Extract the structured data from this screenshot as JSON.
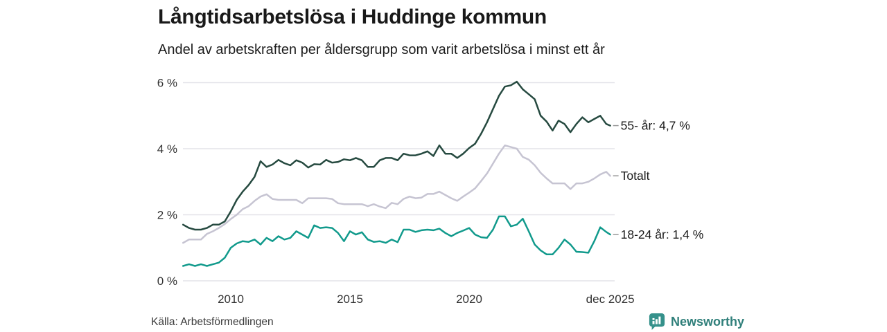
{
  "title": "Långtidsarbetslösa i Huddinge kommun",
  "subtitle": "Andel av arbetskraften per åldersgrupp som varit arbetslösa i minst ett år",
  "source": "Källa: Arbetsförmedlingen",
  "branding": {
    "name": "Newsworthy",
    "text_color": "#2f7f7a",
    "icon_color": "#35918b",
    "icon": "bar-chart-speech-bubble"
  },
  "colors": {
    "gridline": "#e4e3e9",
    "axis_text": "#333333",
    "label_text": "#191919",
    "connector": "#999999",
    "background": "#ffffff"
  },
  "chart_data": {
    "type": "line",
    "title": "Långtidsarbetslösa i Huddinge kommun",
    "subtitle": "Andel av arbetskraften per åldersgrupp som varit arbetslösa i minst ett år",
    "unit": "%",
    "grid": "horizontal",
    "legend_position": "right-end-labels",
    "ylim": [
      0,
      6.3
    ],
    "xlim": [
      2008.0,
      2025.92
    ],
    "yticks": [
      {
        "v": 0,
        "label": "0 %"
      },
      {
        "v": 2,
        "label": "2 %"
      },
      {
        "v": 4,
        "label": "4 %"
      },
      {
        "v": 6,
        "label": "6 %"
      }
    ],
    "xticks": [
      {
        "t": 2010,
        "label": "2010"
      },
      {
        "t": 2015,
        "label": "2015"
      },
      {
        "t": 2020,
        "label": "2020"
      },
      {
        "t": 2025.92,
        "label": "dec 2025"
      }
    ],
    "x": [
      2008.0,
      2008.25,
      2008.5,
      2008.75,
      2009.0,
      2009.25,
      2009.5,
      2009.75,
      2010.0,
      2010.25,
      2010.5,
      2010.75,
      2011.0,
      2011.25,
      2011.5,
      2011.75,
      2012.0,
      2012.25,
      2012.5,
      2012.75,
      2013.0,
      2013.25,
      2013.5,
      2013.75,
      2014.0,
      2014.25,
      2014.5,
      2014.75,
      2015.0,
      2015.25,
      2015.5,
      2015.75,
      2016.0,
      2016.25,
      2016.5,
      2016.75,
      2017.0,
      2017.25,
      2017.5,
      2017.75,
      2018.0,
      2018.25,
      2018.5,
      2018.75,
      2019.0,
      2019.25,
      2019.5,
      2019.75,
      2020.0,
      2020.25,
      2020.5,
      2020.75,
      2021.0,
      2021.25,
      2021.5,
      2021.75,
      2022.0,
      2022.25,
      2022.5,
      2022.75,
      2023.0,
      2023.25,
      2023.5,
      2023.75,
      2024.0,
      2024.25,
      2024.5,
      2024.75,
      2025.0,
      2025.25,
      2025.5,
      2025.75,
      2025.92
    ],
    "series": [
      {
        "name": "55- år",
        "end_label": "55- år: 4,7 %",
        "end_value": "4,7 %",
        "color": "#264a40",
        "values": [
          1.7,
          1.6,
          1.55,
          1.55,
          1.6,
          1.7,
          1.7,
          1.8,
          2.1,
          2.45,
          2.7,
          2.9,
          3.15,
          3.62,
          3.45,
          3.52,
          3.66,
          3.56,
          3.5,
          3.65,
          3.58,
          3.43,
          3.53,
          3.52,
          3.66,
          3.58,
          3.6,
          3.68,
          3.65,
          3.72,
          3.65,
          3.45,
          3.45,
          3.65,
          3.72,
          3.72,
          3.65,
          3.85,
          3.8,
          3.8,
          3.85,
          3.92,
          3.78,
          4.1,
          3.85,
          3.85,
          3.72,
          3.85,
          4.02,
          4.15,
          4.45,
          4.8,
          5.2,
          5.6,
          5.88,
          5.92,
          6.03,
          5.8,
          5.65,
          5.5,
          5.0,
          4.82,
          4.55,
          4.85,
          4.75,
          4.5,
          4.75,
          4.95,
          4.8,
          4.9,
          5.0,
          4.75,
          4.7
        ]
      },
      {
        "name": "Totalt",
        "end_label": "Totalt",
        "end_value": "",
        "color": "#c6c4d2",
        "values": [
          1.15,
          1.25,
          1.25,
          1.25,
          1.42,
          1.5,
          1.6,
          1.72,
          1.87,
          2.0,
          2.17,
          2.26,
          2.42,
          2.55,
          2.62,
          2.48,
          2.45,
          2.45,
          2.45,
          2.45,
          2.35,
          2.5,
          2.5,
          2.5,
          2.5,
          2.48,
          2.35,
          2.32,
          2.32,
          2.32,
          2.32,
          2.26,
          2.32,
          2.25,
          2.2,
          2.36,
          2.32,
          2.48,
          2.55,
          2.5,
          2.52,
          2.63,
          2.63,
          2.7,
          2.6,
          2.5,
          2.42,
          2.55,
          2.67,
          2.8,
          3.02,
          3.25,
          3.55,
          3.85,
          4.1,
          4.05,
          4.0,
          3.75,
          3.67,
          3.5,
          3.27,
          3.1,
          2.95,
          2.95,
          2.95,
          2.78,
          2.95,
          2.95,
          3.0,
          3.1,
          3.22,
          3.3,
          3.18
        ]
      },
      {
        "name": "18-24 år",
        "end_label": "18-24 år: 1,4 %",
        "end_value": "1,4 %",
        "color": "#119a8c",
        "values": [
          0.45,
          0.5,
          0.45,
          0.5,
          0.45,
          0.5,
          0.55,
          0.7,
          1.0,
          1.13,
          1.2,
          1.18,
          1.25,
          1.1,
          1.3,
          1.2,
          1.35,
          1.25,
          1.3,
          1.5,
          1.4,
          1.3,
          1.68,
          1.6,
          1.62,
          1.6,
          1.45,
          1.2,
          1.5,
          1.4,
          1.47,
          1.25,
          1.18,
          1.2,
          1.15,
          1.25,
          1.17,
          1.55,
          1.55,
          1.48,
          1.53,
          1.55,
          1.53,
          1.58,
          1.45,
          1.35,
          1.45,
          1.52,
          1.6,
          1.4,
          1.32,
          1.3,
          1.55,
          1.95,
          1.95,
          1.65,
          1.7,
          1.88,
          1.5,
          1.1,
          0.92,
          0.8,
          0.8,
          1.0,
          1.25,
          1.1,
          0.88,
          0.87,
          0.85,
          1.2,
          1.62,
          1.48,
          1.4
        ]
      }
    ]
  }
}
